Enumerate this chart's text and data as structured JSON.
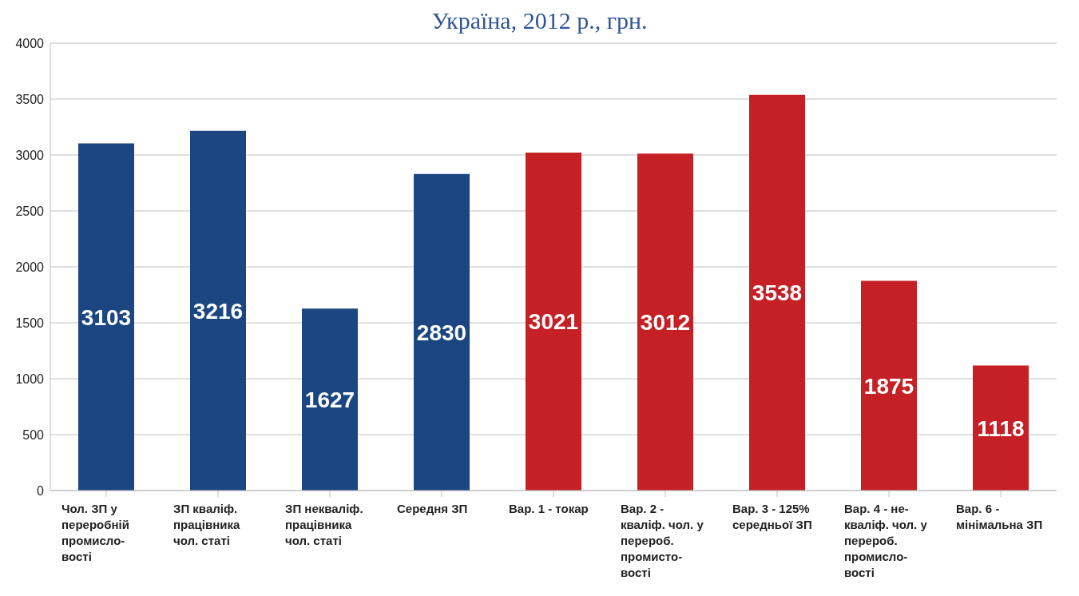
{
  "chart_data": {
    "type": "bar",
    "title": "Україна, 2012 р., грн.",
    "categories": [
      "Чол. ЗП у\nпереробній\nпромисло-\nвості",
      "ЗП кваліф.\nпрацівника\nчол. статі",
      "ЗП некваліф.\nпрацівника\nчол. статі",
      "Середня ЗП",
      "Вар. 1 - токар",
      "Вар. 2 -\nкваліф. чол. у\nперероб.\nпромисто-\nвості",
      "Вар. 3 - 125%\nсередньої ЗП",
      "Вар. 4 - не-\nкваліф. чол. у\nперероб.\nпромисло-\nвості",
      "Вар. 6 -\nмінімальна ЗП"
    ],
    "values": [
      3103,
      3216,
      1627,
      2830,
      3021,
      3012,
      3538,
      1875,
      1118
    ],
    "colors": [
      "#1b4682",
      "#1b4682",
      "#1b4682",
      "#1b4682",
      "#c42026",
      "#c42026",
      "#c42026",
      "#c42026",
      "#c42026"
    ],
    "ylim": [
      0,
      4000
    ],
    "yticks": [
      0,
      500,
      1000,
      1500,
      2000,
      2500,
      3000,
      3500,
      4000
    ],
    "grid": "y",
    "data_labels": true
  }
}
